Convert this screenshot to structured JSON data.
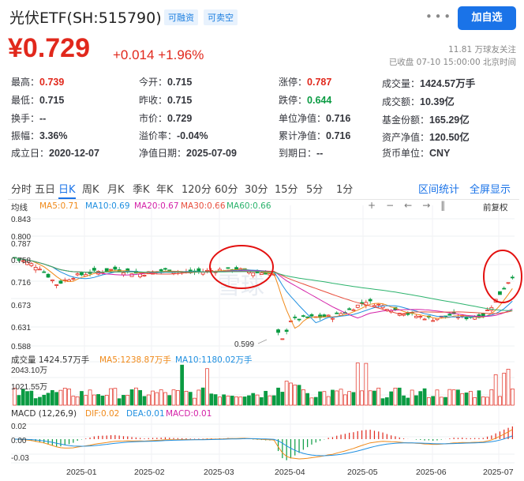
{
  "header": {
    "title": "光伏ETF(SH:515790)",
    "tags": [
      "可融资",
      "可卖空"
    ],
    "share_icon": "share-dots-icon",
    "add_button": "加自选"
  },
  "quote": {
    "price": "¥0.729",
    "change": "+0.014",
    "change_pct": "+1.96%",
    "followers": "11.81 万球友关注",
    "status": "已收盘 07-10 15:00:00 北京时间"
  },
  "stats": [
    [
      {
        "k": "最高：",
        "v": "0.739",
        "c": "red"
      },
      {
        "k": "今开：",
        "v": "0.715",
        "c": ""
      },
      {
        "k": "涨停：",
        "v": "0.787",
        "c": "red"
      },
      {
        "k": "成交量：",
        "v": "1424.57万手",
        "c": ""
      }
    ],
    [
      {
        "k": "最低：",
        "v": "0.715",
        "c": ""
      },
      {
        "k": "昨收：",
        "v": "0.715",
        "c": ""
      },
      {
        "k": "跌停：",
        "v": "0.644",
        "c": "green"
      },
      {
        "k": "成交额：",
        "v": "10.39亿",
        "c": ""
      }
    ],
    [
      {
        "k": "换手：",
        "v": "--",
        "c": ""
      },
      {
        "k": "市价：",
        "v": "0.729",
        "c": ""
      },
      {
        "k": "单位净值：",
        "v": "0.716",
        "c": ""
      },
      {
        "k": "基金份额：",
        "v": "165.29亿",
        "c": ""
      }
    ],
    [
      {
        "k": "振幅：",
        "v": "3.36%",
        "c": ""
      },
      {
        "k": "溢价率：",
        "v": "-0.04%",
        "c": ""
      },
      {
        "k": "累计净值：",
        "v": "0.716",
        "c": ""
      },
      {
        "k": "资产净值：",
        "v": "120.50亿",
        "c": ""
      }
    ],
    [
      {
        "k": "成立日：",
        "v": "2020-12-07",
        "c": ""
      },
      {
        "k": "净值日期：",
        "v": "2025-07-09",
        "c": ""
      },
      {
        "k": "到期日：",
        "v": "--",
        "c": ""
      },
      {
        "k": "货币单位：",
        "v": "CNY",
        "c": ""
      }
    ]
  ],
  "tabs": [
    "分时",
    "五日",
    "日K",
    "周K",
    "月K",
    "季K",
    "年K",
    "120分",
    "60分",
    "30分",
    "15分",
    "5分",
    "1分"
  ],
  "active_tab": "日K",
  "right_tabs": [
    "区间统计",
    "全屏显示"
  ],
  "chart_toolbar": {
    "label": "均线",
    "fq": "前复权",
    "icons": [
      "plus-icon",
      "minus-icon",
      "arrow-left-icon",
      "arrow-right-icon",
      "pause-icon"
    ]
  },
  "ma_legend": [
    {
      "t": "MA5:0.71",
      "c": "#f08a1a"
    },
    {
      "t": "MA10:0.69",
      "c": "#1f8fe0"
    },
    {
      "t": "MA20:0.67",
      "c": "#d422a8"
    },
    {
      "t": "MA30:0.66",
      "c": "#e84e3c"
    },
    {
      "t": "MA60:0.66",
      "c": "#2cb36d"
    }
  ],
  "price_axis": [
    "0.843",
    "0.800",
    "0.787",
    "0.758",
    "0.716",
    "0.673",
    "0.631",
    "0.588"
  ],
  "min_label": "0.599",
  "watermark": "雪球",
  "volume": {
    "legend": [
      {
        "t": "成交量 1424.57万手",
        "c": "#333"
      },
      {
        "t": "MA5:1238.87万手",
        "c": "#f08a1a"
      },
      {
        "t": "MA10:1180.02万手",
        "c": "#1f8fe0"
      }
    ],
    "axis": [
      "2043.10万",
      "1021.55万"
    ]
  },
  "macd": {
    "legend": [
      {
        "t": "MACD (12,26,9)",
        "c": "#333"
      },
      {
        "t": "DIF:0.02",
        "c": "#f08a1a"
      },
      {
        "t": "DEA:0.01",
        "c": "#1f8fe0"
      },
      {
        "t": "MACD:0.01",
        "c": "#d422a8"
      }
    ],
    "axis": [
      "0.02",
      "0.00",
      "-0.03"
    ]
  },
  "x_axis": [
    "2025-01",
    "2025-02",
    "2025-03",
    "2025-04",
    "2025-05",
    "2025-06",
    "2025-07"
  ],
  "colors": {
    "up": "#e1281c",
    "down": "#0a9b42",
    "accent": "#1a73e8",
    "highlight": "#e3100f"
  }
}
